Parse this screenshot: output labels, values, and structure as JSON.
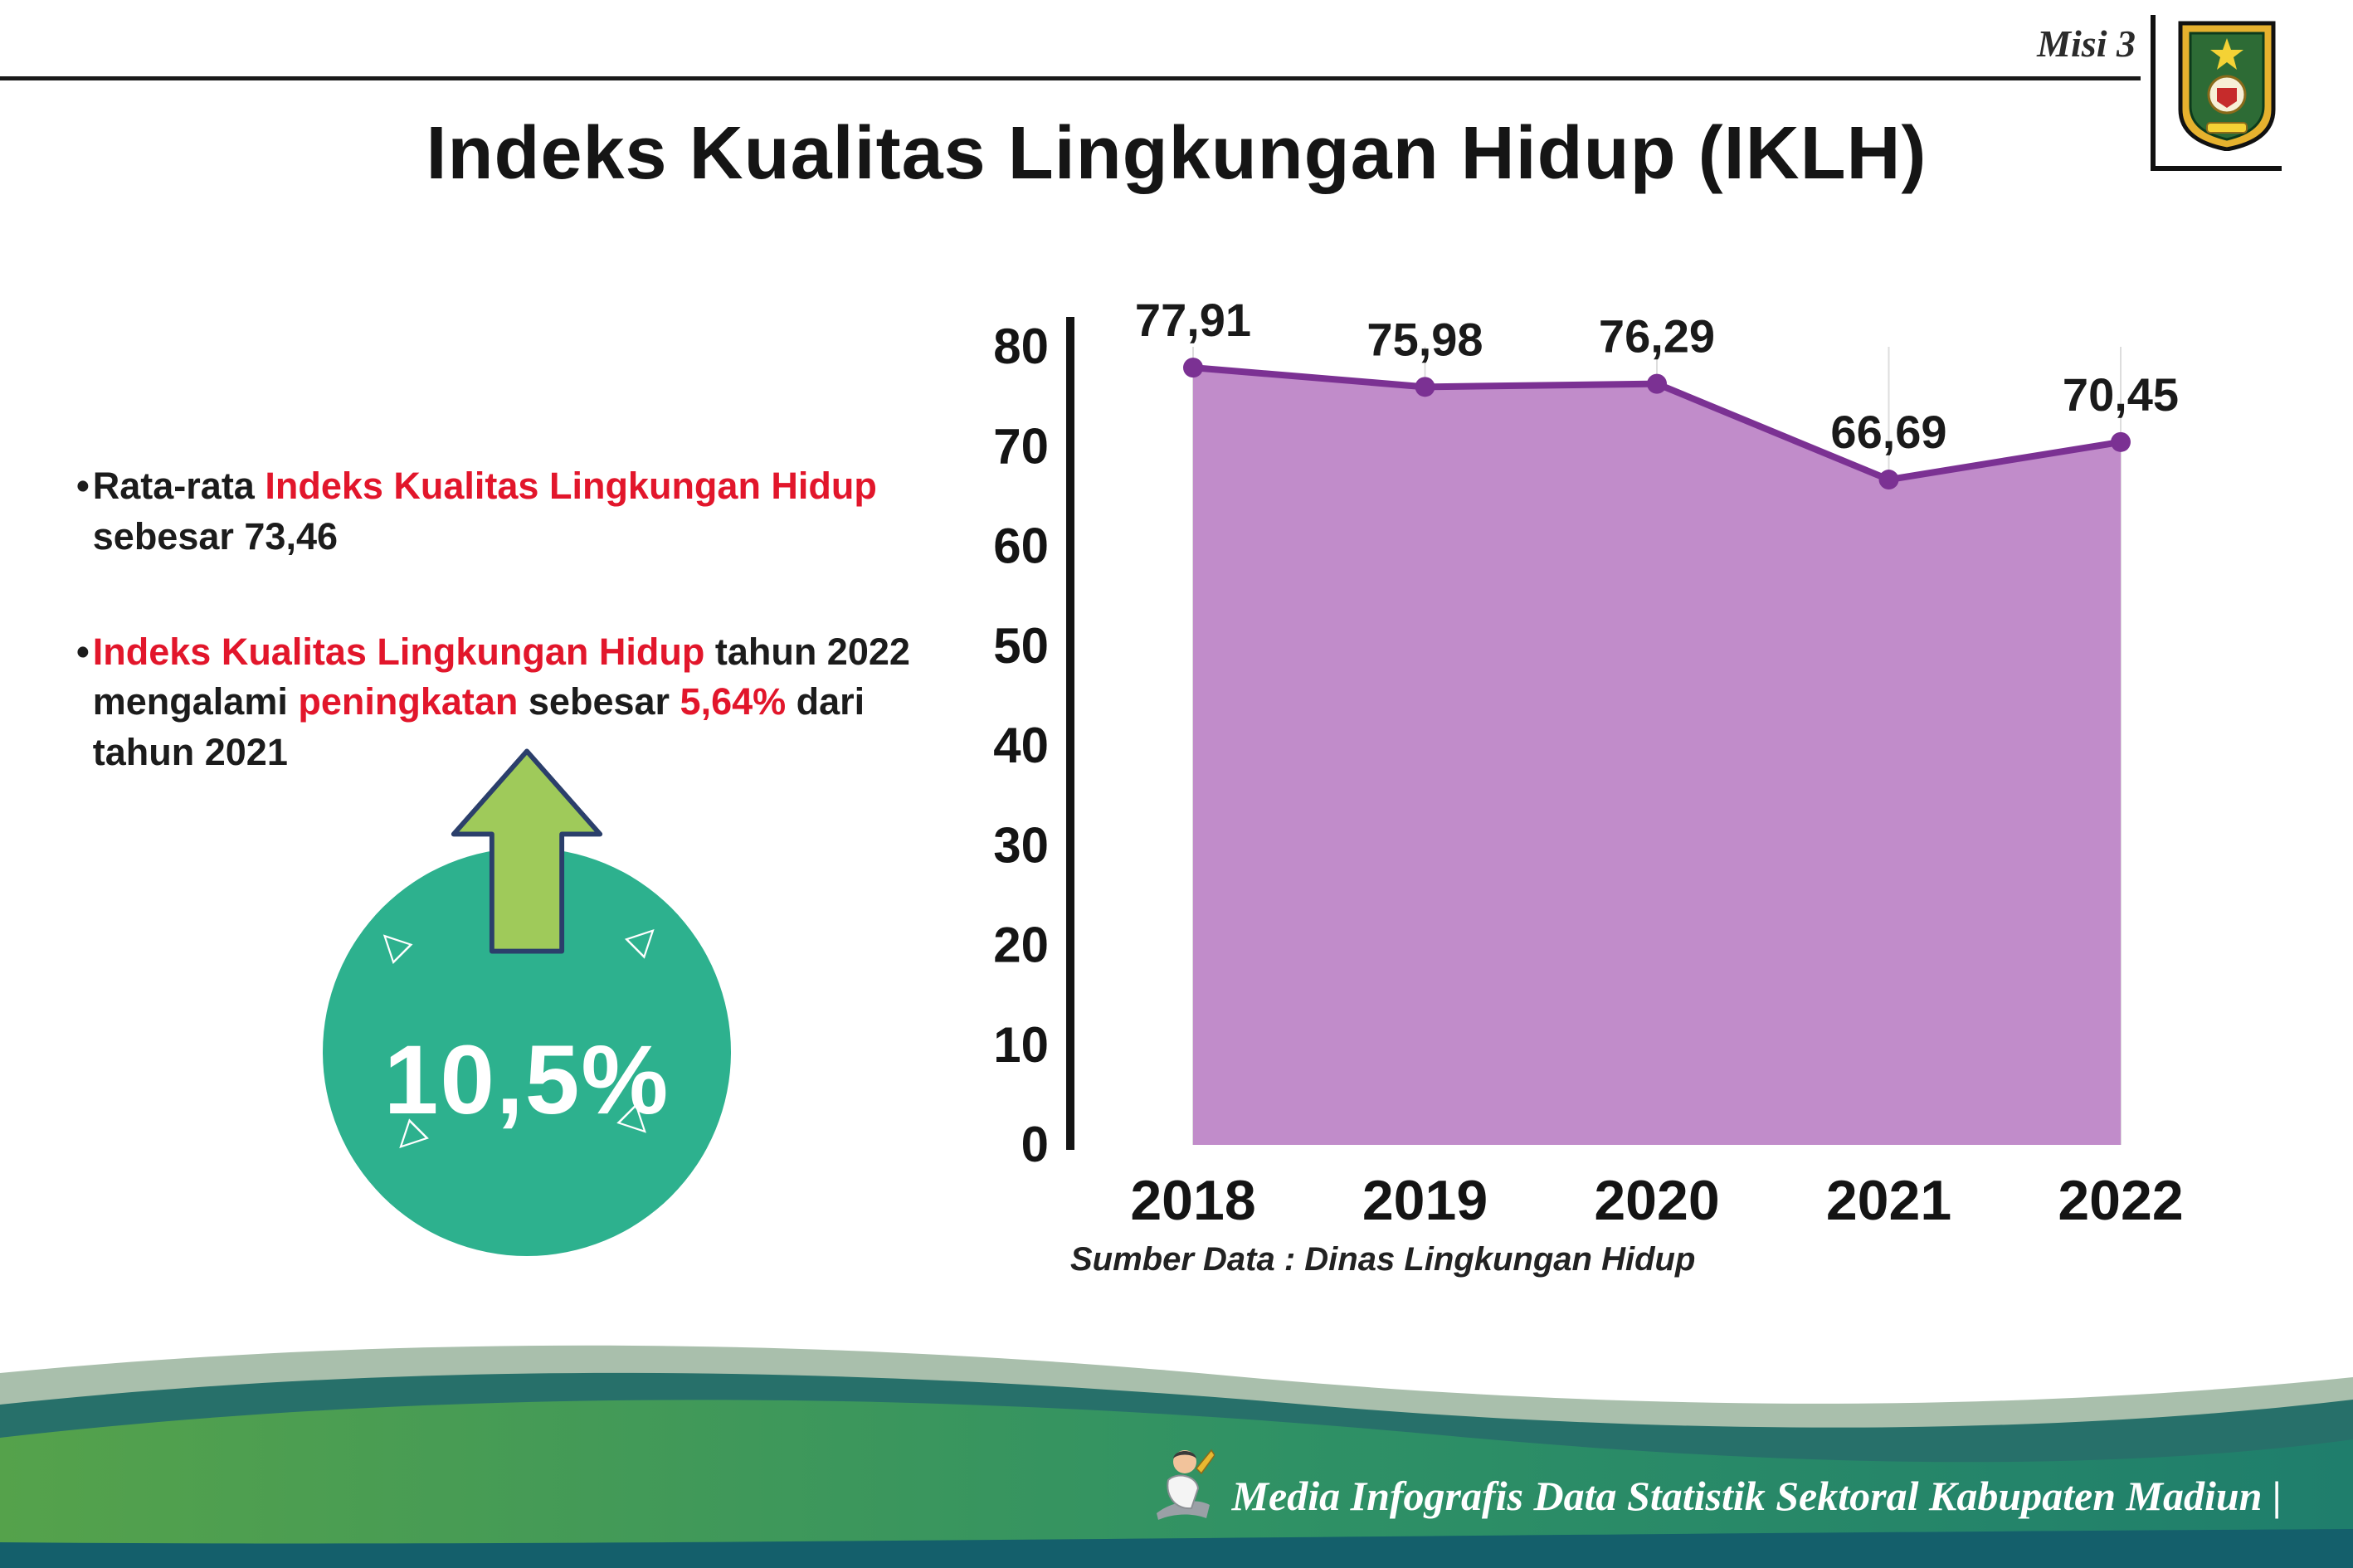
{
  "header": {
    "misi_label": "Misi 3",
    "title": "Indeks Kualitas Lingkungan Hidup (IKLH)"
  },
  "bullets": [
    {
      "marker": "•",
      "segments": [
        {
          "text": "Rata-rata ",
          "color": "dark"
        },
        {
          "text": "Indeks Kualitas Lingkungan Hidup",
          "color": "red"
        },
        {
          "text": " sebesar 73,46",
          "color": "dark"
        }
      ]
    },
    {
      "marker": "•",
      "segments": [
        {
          "text": "Indeks Kualitas Lingkungan Hidup",
          "color": "red"
        },
        {
          "text": " tahun 2022 mengalami ",
          "color": "dark"
        },
        {
          "text": "peningkatan",
          "color": "red"
        },
        {
          "text": " sebesar ",
          "color": "dark"
        },
        {
          "text": "5,64%",
          "color": "red"
        },
        {
          "text": " dari tahun 2021",
          "color": "dark"
        }
      ]
    }
  ],
  "badge": {
    "value": "10,5%",
    "circle_color": "#2db18e",
    "arrow_color": "#9fca5a",
    "arrow_outline_color": "#2b3f6b"
  },
  "chart_data": {
    "type": "area",
    "categories": [
      "2018",
      "2019",
      "2020",
      "2021",
      "2022"
    ],
    "values": [
      77.91,
      75.98,
      76.29,
      66.69,
      70.45
    ],
    "value_labels": [
      "77,91",
      "75,98",
      "76,29",
      "66,69",
      "70,45"
    ],
    "title": "",
    "xlabel": "",
    "ylabel": "",
    "ylim": [
      0,
      80
    ],
    "yticks": [
      0,
      10,
      20,
      30,
      40,
      50,
      60,
      70,
      80
    ],
    "grid": "vertical-light",
    "legend": "none",
    "fill_color": "#c18cca",
    "line_color": "#7b3193",
    "source_note": "Sumber Data : Dinas Lingkungan Hidup"
  },
  "footer": {
    "caption": "Media Infografis Data Statistik Sektoral Kabupaten Madiun |"
  },
  "colors": {
    "red_accent": "#e2162b",
    "text_dark": "#1c1c1c",
    "teal_badge": "#2db18e",
    "footer_sage": "#a9bfac",
    "footer_dark_teal": "#27706a",
    "footer_green": "#4aa14e",
    "footer_teal": "#1f7e6c",
    "footer_strip": "#145f6b"
  }
}
